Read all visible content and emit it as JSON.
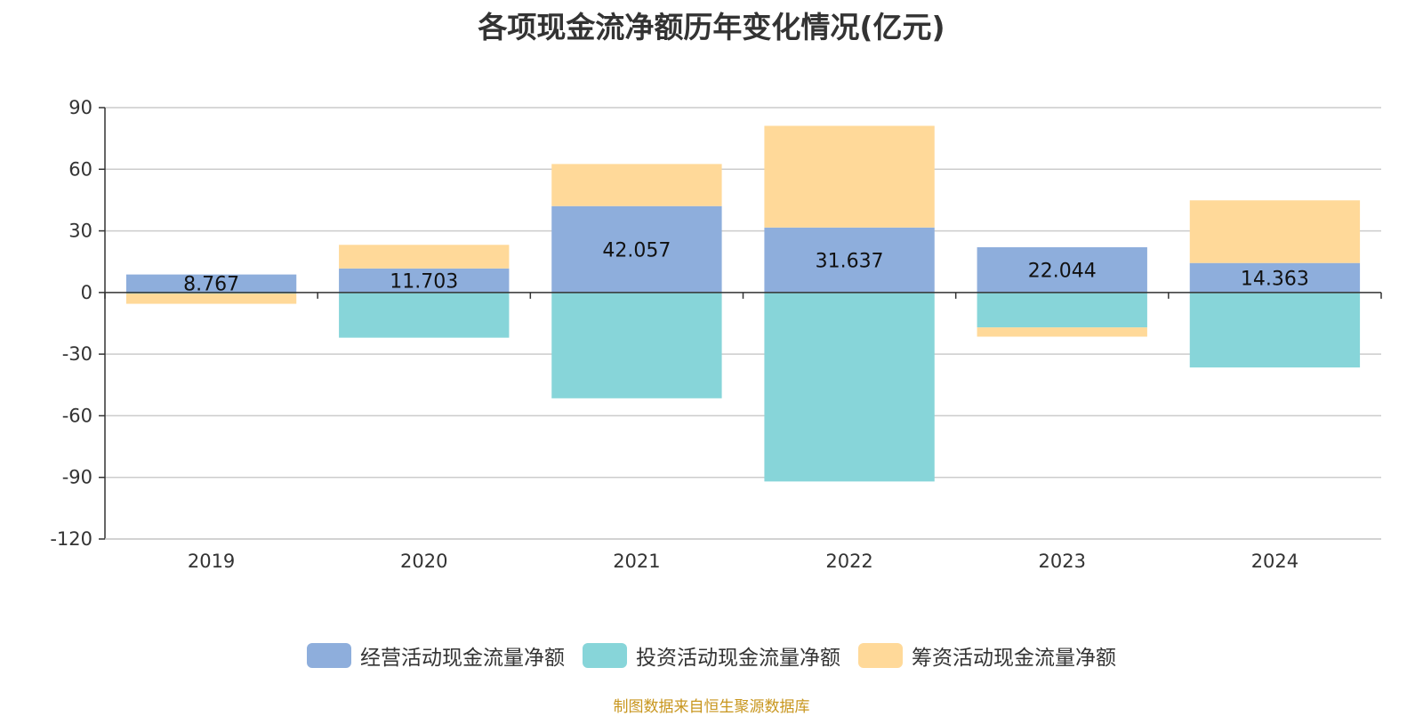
{
  "chart_data": {
    "type": "bar",
    "stacked": true,
    "title": "各项现金流净额历年变化情况(亿元)",
    "categories": [
      "2019",
      "2020",
      "2021",
      "2022",
      "2023",
      "2024"
    ],
    "ylim": [
      -120,
      90
    ],
    "yticks": [
      90,
      60,
      30,
      0,
      -30,
      -60,
      -90,
      -120
    ],
    "grid": true,
    "legend_position": "bottom",
    "series": [
      {
        "name": "经营活动现金流量净额",
        "color": "#8eaedc",
        "values": [
          8.767,
          11.703,
          42.057,
          31.637,
          22.044,
          14.363
        ],
        "show_labels": true
      },
      {
        "name": "投资活动现金流量净额",
        "color": "#87d5d9",
        "values": [
          -0.5,
          -22.0,
          -51.5,
          -92.0,
          -17.0,
          -36.5
        ],
        "show_labels": false
      },
      {
        "name": "筹资活动现金流量净额",
        "color": "#ffd999",
        "values": [
          -5.0,
          11.5,
          20.5,
          49.5,
          -4.5,
          30.5
        ],
        "show_labels": false
      }
    ],
    "source": "制图数据来自恒生聚源数据库"
  }
}
